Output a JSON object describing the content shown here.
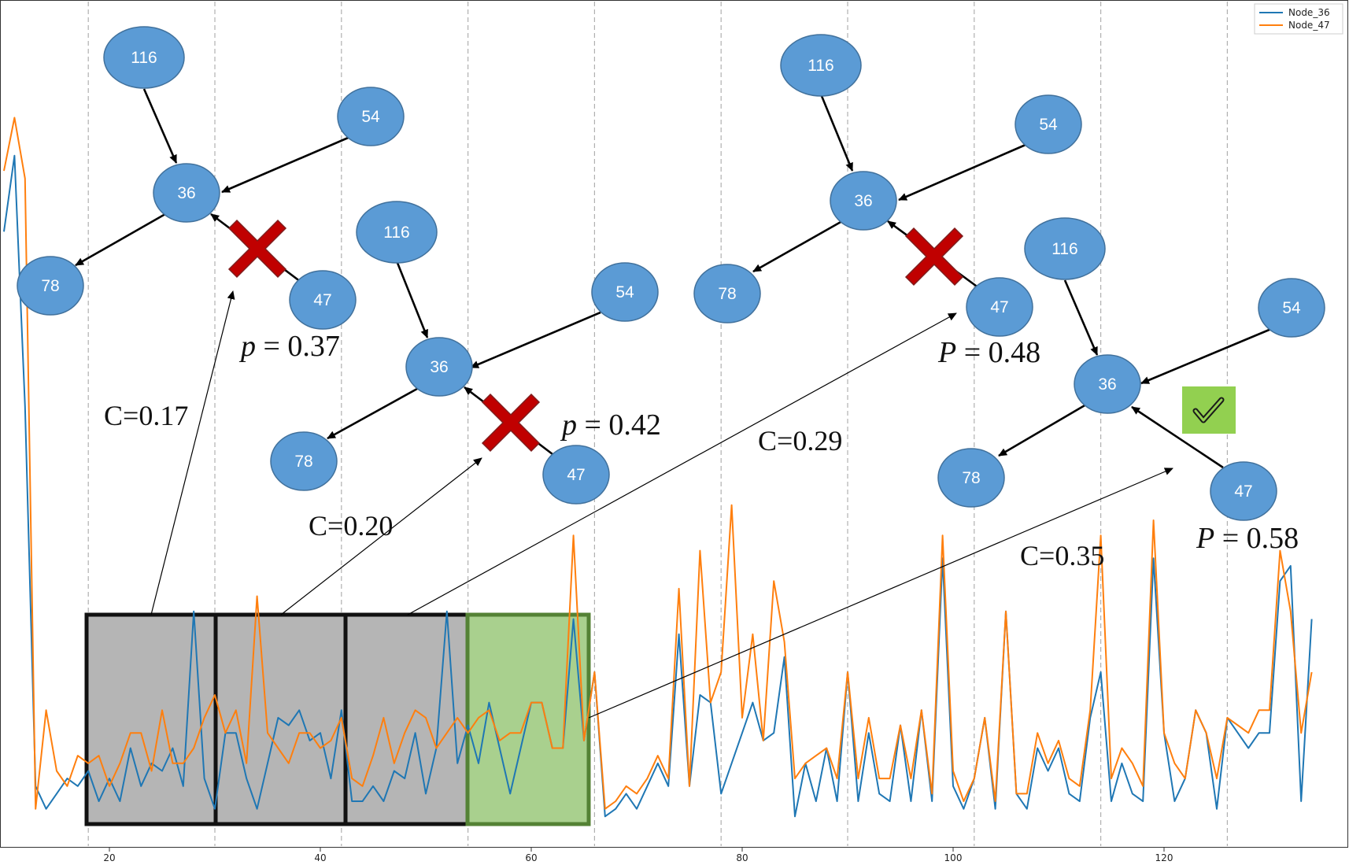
{
  "legend": {
    "items": [
      {
        "label": "Node_36",
        "color": "#1f77b4"
      },
      {
        "label": "Node_47",
        "color": "#ff7f0e"
      }
    ]
  },
  "x_axis": {
    "ticks": [
      "20",
      "40",
      "60",
      "80",
      "100",
      "120"
    ]
  },
  "chart_data": {
    "type": "line",
    "x_start": 10,
    "x_end": 131,
    "xlim": [
      10,
      133
    ],
    "series": [
      {
        "name": "Node_36",
        "color": "#1f77b4",
        "values": [
          0.78,
          0.88,
          0.55,
          0.05,
          0.02,
          0.04,
          0.06,
          0.05,
          0.07,
          0.03,
          0.06,
          0.03,
          0.1,
          0.05,
          0.08,
          0.07,
          0.1,
          0.05,
          0.28,
          0.06,
          0.02,
          0.12,
          0.12,
          0.06,
          0.02,
          0.08,
          0.14,
          0.13,
          0.15,
          0.11,
          0.12,
          0.06,
          0.15,
          0.03,
          0.03,
          0.05,
          0.03,
          0.07,
          0.06,
          0.12,
          0.04,
          0.1,
          0.28,
          0.08,
          0.13,
          0.08,
          0.16,
          0.1,
          0.04,
          0.1,
          0.16,
          0.16,
          0.1,
          0.1,
          0.27,
          0.11,
          0.2,
          0.01,
          0.02,
          0.04,
          0.02,
          0.05,
          0.08,
          0.05,
          0.25,
          0.05,
          0.17,
          0.16,
          0.04,
          0.08,
          0.12,
          0.16,
          0.11,
          0.12,
          0.22,
          0.01,
          0.08,
          0.03,
          0.1,
          0.03,
          0.2,
          0.03,
          0.12,
          0.04,
          0.03,
          0.13,
          0.03,
          0.15,
          0.03,
          0.35,
          0.05,
          0.02,
          0.06,
          0.14,
          0.02,
          0.28,
          0.04,
          0.02,
          0.1,
          0.07,
          0.1,
          0.04,
          0.03,
          0.14,
          0.2,
          0.03,
          0.08,
          0.04,
          0.03,
          0.35,
          0.12,
          0.03,
          0.06,
          0.15,
          0.12,
          0.02,
          0.14,
          0.12,
          0.1,
          0.12,
          0.12,
          0.32,
          0.34,
          0.03,
          0.27
        ]
      },
      {
        "name": "Node_47",
        "color": "#ff7f0e",
        "values": [
          0.86,
          0.93,
          0.85,
          0.02,
          0.15,
          0.07,
          0.05,
          0.09,
          0.08,
          0.09,
          0.05,
          0.08,
          0.12,
          0.12,
          0.07,
          0.15,
          0.08,
          0.08,
          0.1,
          0.14,
          0.17,
          0.12,
          0.15,
          0.08,
          0.3,
          0.12,
          0.1,
          0.08,
          0.12,
          0.12,
          0.1,
          0.11,
          0.14,
          0.06,
          0.05,
          0.09,
          0.14,
          0.08,
          0.12,
          0.15,
          0.14,
          0.1,
          0.12,
          0.14,
          0.12,
          0.14,
          0.15,
          0.11,
          0.12,
          0.12,
          0.16,
          0.16,
          0.1,
          0.1,
          0.38,
          0.11,
          0.2,
          0.02,
          0.03,
          0.05,
          0.04,
          0.06,
          0.09,
          0.06,
          0.31,
          0.05,
          0.36,
          0.16,
          0.2,
          0.42,
          0.14,
          0.25,
          0.11,
          0.32,
          0.24,
          0.06,
          0.08,
          0.09,
          0.1,
          0.06,
          0.2,
          0.06,
          0.14,
          0.06,
          0.06,
          0.13,
          0.06,
          0.15,
          0.04,
          0.38,
          0.07,
          0.03,
          0.06,
          0.14,
          0.03,
          0.28,
          0.04,
          0.04,
          0.12,
          0.08,
          0.11,
          0.06,
          0.05,
          0.15,
          0.38,
          0.06,
          0.1,
          0.08,
          0.05,
          0.4,
          0.12,
          0.08,
          0.06,
          0.15,
          0.12,
          0.06,
          0.14,
          0.13,
          0.12,
          0.15,
          0.15,
          0.36,
          0.28,
          0.12,
          0.2
        ]
      }
    ]
  },
  "windows": [
    {
      "label": "window-1",
      "fill": "#b5b5b5",
      "border": "#111111"
    },
    {
      "label": "window-2",
      "fill": "#b5b5b5",
      "border": "#111111"
    },
    {
      "label": "window-3",
      "fill": "#b5b5b5",
      "border": "#111111"
    },
    {
      "label": "window-4",
      "fill": "#a9d08e",
      "border": "#548235"
    }
  ],
  "graphs": [
    {
      "nodes": {
        "n116": "116",
        "n54": "54",
        "n36": "36",
        "n78": "78",
        "n47": "47"
      },
      "edge_status": "rejected",
      "probability_symbol": "p",
      "probability_value": " = 0.37",
      "correlation": "C=0.17"
    },
    {
      "nodes": {
        "n116": "116",
        "n54": "54",
        "n36": "36",
        "n78": "78",
        "n47": "47"
      },
      "edge_status": "rejected",
      "probability_symbol": "p",
      "probability_value": " = 0.42",
      "correlation": "C=0.20"
    },
    {
      "nodes": {
        "n116": "116",
        "n54": "54",
        "n36": "36",
        "n78": "78",
        "n47": "47"
      },
      "edge_status": "rejected",
      "probability_symbol": "P",
      "probability_value": " = 0.48",
      "correlation": "C=0.29"
    },
    {
      "nodes": {
        "n116": "116",
        "n54": "54",
        "n36": "36",
        "n78": "78",
        "n47": "47"
      },
      "edge_status": "accepted",
      "probability_symbol": "P",
      "probability_value": " = 0.58",
      "correlation": "C=0.35"
    }
  ],
  "colors": {
    "node_fill": "#5b9bd5",
    "node_stroke": "#41719c",
    "reject_mark": "#c00000",
    "accept_mark": "#92d050",
    "grid": "#b0b0b0"
  },
  "icons": {
    "reject": "cross-mark-icon",
    "accept": "check-mark-icon"
  }
}
